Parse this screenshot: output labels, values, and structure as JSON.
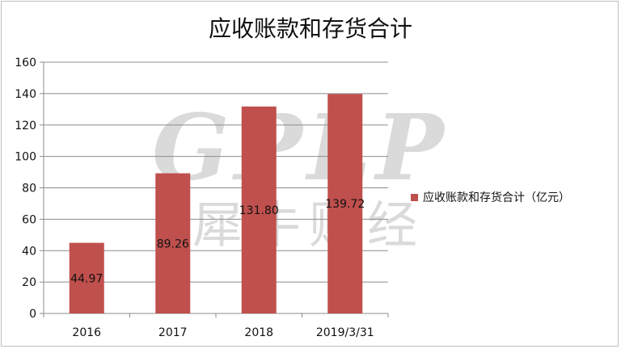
{
  "watermark": {
    "latin": "GPLP",
    "cjk": "犀牛财经"
  },
  "chart_data": {
    "type": "bar",
    "title": "应收账款和存货合计",
    "categories": [
      "2016",
      "2017",
      "2018",
      "2019/3/31"
    ],
    "series": [
      {
        "name": "应收账款和存货合计（亿元）",
        "values": [
          44.97,
          89.26,
          131.8,
          139.72
        ],
        "color": "#c0504d"
      }
    ],
    "data_labels": [
      "44.97",
      "89.26",
      "131.80",
      "139.72"
    ],
    "yticks": [
      0,
      20,
      40,
      60,
      80,
      100,
      120,
      140,
      160
    ],
    "ylim": [
      0,
      160
    ],
    "grid": true,
    "legend_position": "right"
  }
}
